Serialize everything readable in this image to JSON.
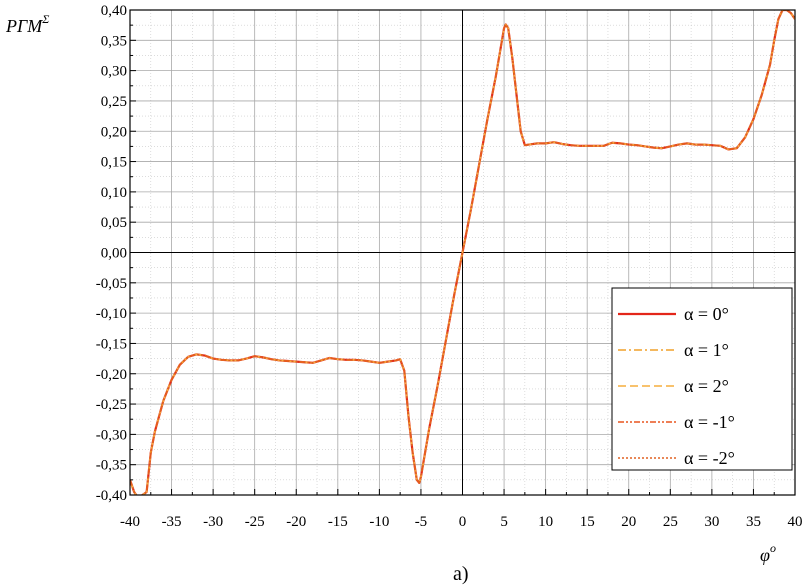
{
  "chart_data": {
    "type": "line",
    "title": "",
    "ylabel_main": "PГM",
    "ylabel_sup": "Σ",
    "xlabel_main": "φ",
    "xlabel_sup": "o",
    "caption": "a)",
    "xlim": [
      -40,
      40
    ],
    "ylim": [
      -0.4,
      0.4
    ],
    "grid": true,
    "legend_position": "bottom-right",
    "x_ticks": [
      -40,
      -35,
      -30,
      -25,
      -20,
      -15,
      -10,
      -5,
      0,
      5,
      10,
      15,
      20,
      25,
      30,
      35,
      40
    ],
    "x_tick_labels": [
      "-40",
      "-35",
      "-30",
      "-25",
      "-20",
      "-15",
      "-10",
      "-5",
      "0",
      "5",
      "10",
      "15",
      "20",
      "25",
      "30",
      "35",
      "40"
    ],
    "y_ticks": [
      0.4,
      0.35,
      0.3,
      0.25,
      0.2,
      0.15,
      0.1,
      0.05,
      0.0,
      -0.05,
      -0.1,
      -0.15,
      -0.2,
      -0.25,
      -0.3,
      -0.35,
      -0.4
    ],
    "y_tick_labels": [
      "0,40",
      "0,35",
      "0,30",
      "0,25",
      "0,20",
      "0,15",
      "0,10",
      "0,05",
      "0,00",
      "-0,05",
      "-0,10",
      "-0,15",
      "-0,20",
      "-0,25",
      "-0,30",
      "-0,35",
      "-0,40"
    ],
    "x": [
      -40,
      -39.5,
      -39,
      -38.5,
      -38,
      -37.5,
      -37,
      -36,
      -35,
      -34,
      -33,
      -32,
      -31,
      -30,
      -29,
      -28,
      -27,
      -26,
      -25,
      -24,
      -23,
      -22,
      -21,
      -20,
      -19,
      -18,
      -17,
      -16,
      -15,
      -14,
      -13,
      -12,
      -11,
      -10,
      -9,
      -8,
      -7.5,
      -7,
      -6.5,
      -6,
      -5.5,
      -5.2,
      -5,
      -4,
      -3,
      -2,
      -1,
      0,
      1,
      2,
      3,
      4,
      5,
      5.2,
      5.5,
      6,
      6.5,
      7,
      7.5,
      8,
      9,
      10,
      11,
      12,
      13,
      14,
      15,
      16,
      17,
      18,
      19,
      20,
      21,
      22,
      23,
      24,
      25,
      26,
      27,
      28,
      29,
      30,
      31,
      32,
      33,
      34,
      35,
      36,
      37,
      37.5,
      38,
      38.5,
      39,
      39.5,
      40
    ],
    "series": [
      {
        "name": "α = 0°",
        "color": "#e3261a",
        "dash": "solid",
        "values": [
          -0.375,
          -0.395,
          -0.405,
          -0.4,
          -0.395,
          -0.33,
          -0.295,
          -0.245,
          -0.21,
          -0.185,
          -0.172,
          -0.168,
          -0.17,
          -0.175,
          -0.177,
          -0.178,
          -0.178,
          -0.175,
          -0.171,
          -0.173,
          -0.176,
          -0.178,
          -0.179,
          -0.18,
          -0.181,
          -0.182,
          -0.178,
          -0.174,
          -0.176,
          -0.177,
          -0.177,
          -0.178,
          -0.18,
          -0.182,
          -0.18,
          -0.178,
          -0.176,
          -0.195,
          -0.27,
          -0.33,
          -0.375,
          -0.38,
          -0.37,
          -0.29,
          -0.22,
          -0.145,
          -0.07,
          0.0,
          0.07,
          0.145,
          0.22,
          0.29,
          0.37,
          0.376,
          0.37,
          0.32,
          0.26,
          0.2,
          0.177,
          0.178,
          0.18,
          0.18,
          0.182,
          0.179,
          0.177,
          0.176,
          0.176,
          0.176,
          0.176,
          0.181,
          0.18,
          0.178,
          0.177,
          0.175,
          0.173,
          0.172,
          0.175,
          0.178,
          0.18,
          0.178,
          0.178,
          0.177,
          0.176,
          0.17,
          0.172,
          0.19,
          0.22,
          0.26,
          0.31,
          0.35,
          0.385,
          0.4,
          0.4,
          0.395,
          0.385
        ]
      },
      {
        "name": "α = 1°",
        "color": "#f0a02a",
        "dash": "8,3,2,3",
        "values": [
          -0.375,
          -0.395,
          -0.405,
          -0.4,
          -0.395,
          -0.33,
          -0.295,
          -0.245,
          -0.21,
          -0.185,
          -0.172,
          -0.168,
          -0.17,
          -0.175,
          -0.177,
          -0.178,
          -0.178,
          -0.175,
          -0.171,
          -0.173,
          -0.176,
          -0.178,
          -0.179,
          -0.18,
          -0.181,
          -0.182,
          -0.178,
          -0.174,
          -0.176,
          -0.177,
          -0.177,
          -0.178,
          -0.18,
          -0.182,
          -0.18,
          -0.178,
          -0.176,
          -0.195,
          -0.27,
          -0.33,
          -0.375,
          -0.38,
          -0.37,
          -0.29,
          -0.22,
          -0.145,
          -0.07,
          0.0,
          0.07,
          0.145,
          0.22,
          0.29,
          0.37,
          0.376,
          0.37,
          0.32,
          0.26,
          0.2,
          0.177,
          0.178,
          0.18,
          0.18,
          0.182,
          0.179,
          0.177,
          0.176,
          0.176,
          0.176,
          0.176,
          0.181,
          0.18,
          0.178,
          0.177,
          0.175,
          0.173,
          0.172,
          0.175,
          0.178,
          0.18,
          0.178,
          0.178,
          0.177,
          0.176,
          0.17,
          0.172,
          0.19,
          0.22,
          0.26,
          0.31,
          0.35,
          0.385,
          0.4,
          0.4,
          0.395,
          0.385
        ]
      },
      {
        "name": "α = 2°",
        "color": "#f5ad3d",
        "dash": "8,4",
        "values": [
          -0.375,
          -0.395,
          -0.405,
          -0.4,
          -0.395,
          -0.33,
          -0.295,
          -0.245,
          -0.21,
          -0.185,
          -0.172,
          -0.168,
          -0.17,
          -0.175,
          -0.177,
          -0.178,
          -0.178,
          -0.175,
          -0.171,
          -0.173,
          -0.176,
          -0.178,
          -0.179,
          -0.18,
          -0.181,
          -0.182,
          -0.178,
          -0.174,
          -0.176,
          -0.177,
          -0.177,
          -0.178,
          -0.18,
          -0.182,
          -0.18,
          -0.178,
          -0.176,
          -0.195,
          -0.27,
          -0.33,
          -0.375,
          -0.38,
          -0.37,
          -0.29,
          -0.22,
          -0.145,
          -0.07,
          0.0,
          0.07,
          0.145,
          0.22,
          0.29,
          0.37,
          0.376,
          0.37,
          0.32,
          0.26,
          0.2,
          0.177,
          0.178,
          0.18,
          0.18,
          0.182,
          0.179,
          0.177,
          0.176,
          0.176,
          0.176,
          0.176,
          0.181,
          0.18,
          0.178,
          0.177,
          0.175,
          0.173,
          0.172,
          0.175,
          0.178,
          0.18,
          0.178,
          0.178,
          0.177,
          0.176,
          0.17,
          0.172,
          0.19,
          0.22,
          0.26,
          0.31,
          0.35,
          0.385,
          0.4,
          0.4,
          0.395,
          0.385
        ]
      },
      {
        "name": "α = -1°",
        "color": "#e8551e",
        "dash": "6,2,2,2,2,2",
        "values": [
          -0.375,
          -0.395,
          -0.405,
          -0.4,
          -0.395,
          -0.33,
          -0.295,
          -0.245,
          -0.21,
          -0.185,
          -0.172,
          -0.168,
          -0.17,
          -0.175,
          -0.177,
          -0.178,
          -0.178,
          -0.175,
          -0.171,
          -0.173,
          -0.176,
          -0.178,
          -0.179,
          -0.18,
          -0.181,
          -0.182,
          -0.178,
          -0.174,
          -0.176,
          -0.177,
          -0.177,
          -0.178,
          -0.18,
          -0.182,
          -0.18,
          -0.178,
          -0.176,
          -0.195,
          -0.27,
          -0.33,
          -0.375,
          -0.38,
          -0.37,
          -0.29,
          -0.22,
          -0.145,
          -0.07,
          0.0,
          0.07,
          0.145,
          0.22,
          0.29,
          0.37,
          0.376,
          0.37,
          0.32,
          0.26,
          0.2,
          0.177,
          0.178,
          0.18,
          0.18,
          0.182,
          0.179,
          0.177,
          0.176,
          0.176,
          0.176,
          0.176,
          0.181,
          0.18,
          0.178,
          0.177,
          0.175,
          0.173,
          0.172,
          0.175,
          0.178,
          0.18,
          0.178,
          0.178,
          0.177,
          0.176,
          0.17,
          0.172,
          0.19,
          0.22,
          0.26,
          0.31,
          0.35,
          0.385,
          0.4,
          0.4,
          0.395,
          0.385
        ]
      },
      {
        "name": "α = -2°",
        "color": "#e06020",
        "dash": "2,2",
        "values": [
          -0.375,
          -0.395,
          -0.405,
          -0.4,
          -0.395,
          -0.33,
          -0.295,
          -0.245,
          -0.21,
          -0.185,
          -0.172,
          -0.168,
          -0.17,
          -0.175,
          -0.177,
          -0.178,
          -0.178,
          -0.175,
          -0.171,
          -0.173,
          -0.176,
          -0.178,
          -0.179,
          -0.18,
          -0.181,
          -0.182,
          -0.178,
          -0.174,
          -0.176,
          -0.177,
          -0.177,
          -0.178,
          -0.18,
          -0.182,
          -0.18,
          -0.178,
          -0.176,
          -0.195,
          -0.27,
          -0.33,
          -0.375,
          -0.38,
          -0.37,
          -0.29,
          -0.22,
          -0.145,
          -0.07,
          0.0,
          0.07,
          0.145,
          0.22,
          0.29,
          0.37,
          0.376,
          0.37,
          0.32,
          0.26,
          0.2,
          0.177,
          0.178,
          0.18,
          0.18,
          0.182,
          0.179,
          0.177,
          0.176,
          0.176,
          0.176,
          0.176,
          0.181,
          0.18,
          0.178,
          0.177,
          0.175,
          0.173,
          0.172,
          0.175,
          0.178,
          0.18,
          0.178,
          0.178,
          0.177,
          0.176,
          0.17,
          0.172,
          0.19,
          0.22,
          0.26,
          0.31,
          0.35,
          0.385,
          0.4,
          0.4,
          0.395,
          0.385
        ]
      }
    ]
  }
}
